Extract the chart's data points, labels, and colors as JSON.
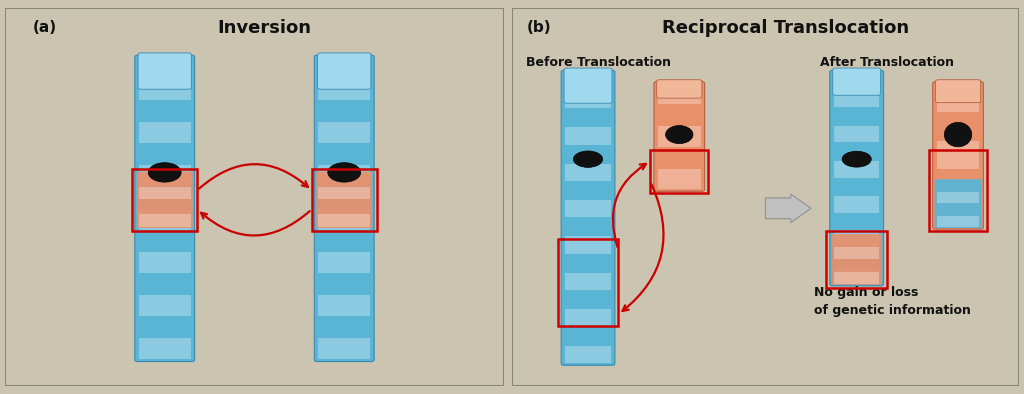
{
  "panel_a_title": "Inversion",
  "panel_b_title": "Reciprocal Translocation",
  "panel_a_label": "(a)",
  "panel_b_label": "(b)",
  "header_bg": "#cbc4b0",
  "panel_bg": "#ffffff",
  "outer_bg": "#cbc4b0",
  "chr_blue": "#5ab4d4",
  "chr_blue_light": "#a0d8ee",
  "chr_blue_dark": "#3a8ab0",
  "chr_orange": "#e8906a",
  "chr_orange_light": "#f0b898",
  "centromere_color": "#111111",
  "box_color": "#cc0000",
  "arrow_color": "#cc0000",
  "text_color": "#111111",
  "before_label": "Before Translocation",
  "after_label": "After Translocation",
  "note_label": "No gain or loss\nof genetic information"
}
